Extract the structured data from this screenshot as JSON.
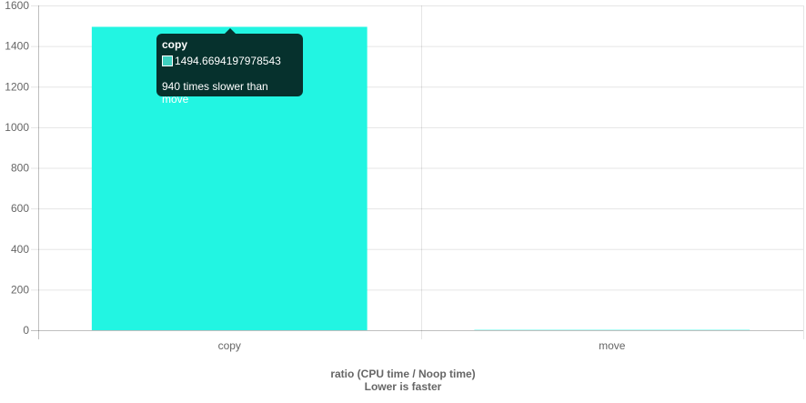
{
  "chart_data": {
    "type": "bar",
    "categories": [
      "copy",
      "move"
    ],
    "values": [
      1494.6694197978543,
      1.59
    ],
    "ylim": [
      0,
      1600
    ],
    "yticks": [
      0,
      200,
      400,
      600,
      800,
      1000,
      1200,
      1400,
      1600
    ],
    "xlabel_line1": "ratio (CPU time / Noop time)",
    "xlabel_line2": "Lower is faster",
    "bar_color": "#22f5e2",
    "grid": true
  },
  "tooltip": {
    "title": "copy",
    "value": "1494.6694197978543",
    "footer": "940 times slower than move",
    "swatch_color": "#3fcfbf"
  }
}
